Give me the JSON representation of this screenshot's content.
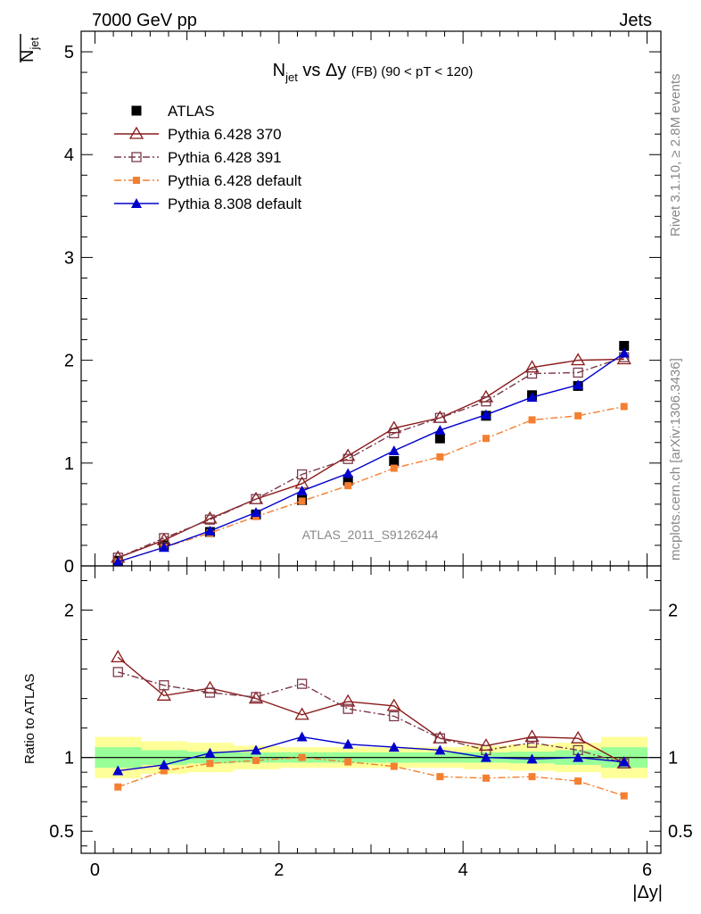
{
  "header": {
    "left": "7000 GeV pp",
    "right": "Jets"
  },
  "side_labels": {
    "rivet": "Rivet 3.1.10, ≥ 2.8M events",
    "mcplots": "mcplots.cern.ch [arXiv:1306.3436]"
  },
  "watermark": "ATLAS_2011_S9126244",
  "chart_data": [
    {
      "type": "line",
      "title": "N_jet vs Δy (FB) (90 < pT < 120)",
      "title_parts": {
        "N": "N",
        "sub": "jet",
        "rest": " vs Δy ",
        "small": "(FB)",
        "range": " (90 < pT < 120)"
      },
      "ylabel": "N_jet (mean)",
      "ylabel_parts": {
        "N": "N",
        "sub": "jet"
      },
      "xlim": [
        -0.15,
        6.15
      ],
      "ylim": [
        0,
        5.2
      ],
      "yticks": [
        0,
        1,
        2,
        3,
        4,
        5
      ],
      "x": [
        0.25,
        0.75,
        1.25,
        1.75,
        2.25,
        2.75,
        3.25,
        3.75,
        4.25,
        4.75,
        5.25,
        5.75
      ],
      "legend_position": "top-left",
      "series": [
        {
          "name": "ATLAS",
          "color": "#000000",
          "marker": "square-filled",
          "line": "none",
          "values": [
            0.05,
            0.2,
            0.33,
            0.5,
            0.64,
            0.83,
            1.02,
            1.24,
            1.46,
            1.66,
            1.75,
            2.14
          ]
        },
        {
          "name": "Pythia 6.428 370",
          "color": "#8b1a1a",
          "marker": "triangle-open",
          "line": "solid",
          "values": [
            0.08,
            0.25,
            0.46,
            0.65,
            0.8,
            1.07,
            1.34,
            1.44,
            1.64,
            1.93,
            2.0,
            2.01
          ]
        },
        {
          "name": "Pythia 6.428 391",
          "color": "#7a3a4a",
          "marker": "square-open",
          "line": "dashdot",
          "values": [
            0.08,
            0.27,
            0.45,
            0.65,
            0.89,
            1.04,
            1.29,
            1.44,
            1.6,
            1.87,
            1.88,
            2.03
          ]
        },
        {
          "name": "Pythia 6.428 default",
          "color": "#f47f30",
          "marker": "square-small",
          "line": "dashdot",
          "values": [
            0.04,
            0.18,
            0.32,
            0.48,
            0.63,
            0.78,
            0.95,
            1.06,
            1.24,
            1.42,
            1.46,
            1.55
          ]
        },
        {
          "name": "Pythia 8.308 default",
          "color": "#0000cc",
          "marker": "triangle-filled",
          "line": "solid",
          "values": [
            0.04,
            0.18,
            0.34,
            0.52,
            0.73,
            0.9,
            1.12,
            1.32,
            1.47,
            1.64,
            1.76,
            2.07
          ]
        }
      ]
    },
    {
      "type": "line",
      "ylabel": "Ratio to ATLAS",
      "xlabel": "|Δy|",
      "xlim": [
        -0.15,
        6.15
      ],
      "ylim": [
        0.35,
        2.3
      ],
      "yticks": [
        0.5,
        1,
        2
      ],
      "xticks": [
        0,
        2,
        4,
        6
      ],
      "x": [
        0.25,
        0.75,
        1.25,
        1.75,
        2.25,
        2.75,
        3.25,
        3.75,
        4.25,
        4.75,
        5.25,
        5.75
      ],
      "bands": {
        "green_half_width": [
          0.07,
          0.05,
          0.04,
          0.035,
          0.035,
          0.035,
          0.035,
          0.035,
          0.035,
          0.04,
          0.05,
          0.07
        ],
        "yellow_half_width": [
          0.14,
          0.11,
          0.1,
          0.08,
          0.07,
          0.07,
          0.07,
          0.07,
          0.08,
          0.09,
          0.1,
          0.14
        ]
      },
      "series": [
        {
          "name": "Pythia 6.428 370",
          "values": [
            1.68,
            1.42,
            1.47,
            1.4,
            1.29,
            1.38,
            1.35,
            1.13,
            1.08,
            1.14,
            1.13,
            0.96
          ]
        },
        {
          "name": "Pythia 6.428 391",
          "values": [
            1.58,
            1.49,
            1.44,
            1.41,
            1.5,
            1.33,
            1.28,
            1.13,
            1.05,
            1.1,
            1.05,
            0.96
          ]
        },
        {
          "name": "Pythia 6.428 default",
          "values": [
            0.8,
            0.91,
            0.96,
            0.98,
            1.0,
            0.97,
            0.94,
            0.87,
            0.86,
            0.87,
            0.84,
            0.74
          ]
        },
        {
          "name": "Pythia 8.308 default",
          "values": [
            0.91,
            0.95,
            1.03,
            1.05,
            1.14,
            1.09,
            1.07,
            1.05,
            1.0,
            0.99,
            1.0,
            0.97
          ]
        }
      ]
    }
  ]
}
